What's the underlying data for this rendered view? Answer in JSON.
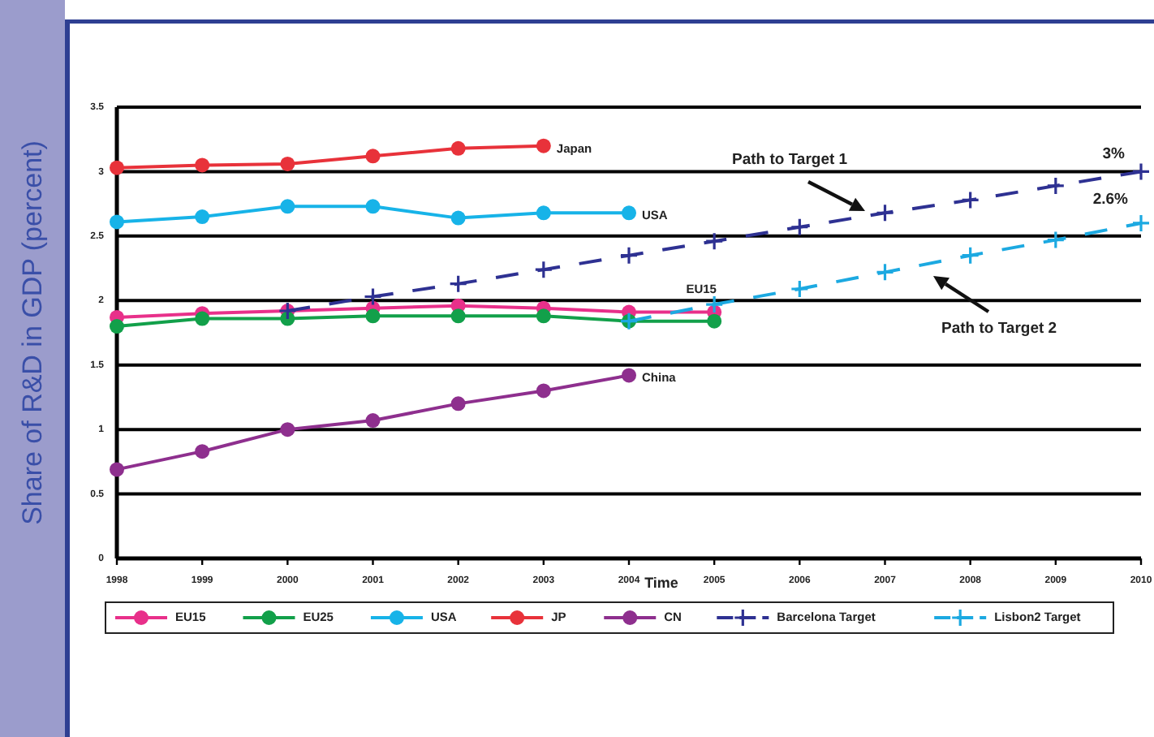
{
  "chart_data": {
    "type": "line",
    "xlabel": "Time",
    "ylabel": "Share of R&D in GDP (percent)",
    "x": [
      1998,
      1999,
      2000,
      2001,
      2002,
      2003,
      2004,
      2005,
      2006,
      2007,
      2008,
      2009,
      2010
    ],
    "xlim": [
      1998,
      2010
    ],
    "xticks": [
      1998,
      1999,
      2000,
      2001,
      2002,
      2003,
      2004,
      2005,
      2006,
      2007,
      2008,
      2009,
      2010
    ],
    "ylim": [
      0,
      3.5
    ],
    "yticks": [
      0,
      0.5,
      1,
      1.5,
      2,
      2.5,
      3,
      3.5
    ],
    "grid": "y",
    "legend": "bottom",
    "series": [
      {
        "name": "EU15",
        "color": "#e8308a",
        "marker": "circle",
        "line_style": "solid",
        "values": [
          1.87,
          1.9,
          1.92,
          1.94,
          1.96,
          1.94,
          1.91,
          1.91,
          null,
          null,
          null,
          null,
          null
        ]
      },
      {
        "name": "EU25",
        "color": "#12a04a",
        "marker": "circle",
        "line_style": "solid",
        "values": [
          1.8,
          1.86,
          1.86,
          1.88,
          1.88,
          1.88,
          1.84,
          1.84,
          null,
          null,
          null,
          null,
          null
        ]
      },
      {
        "name": "USA",
        "color": "#17b3e8",
        "marker": "circle",
        "line_style": "solid",
        "values": [
          2.61,
          2.65,
          2.73,
          2.73,
          2.64,
          2.68,
          2.68,
          null,
          null,
          null,
          null,
          null,
          null
        ]
      },
      {
        "name": "JP",
        "color": "#e8323a",
        "marker": "circle",
        "line_style": "solid",
        "values": [
          3.03,
          3.05,
          3.06,
          3.12,
          3.18,
          3.2,
          null,
          null,
          null,
          null,
          null,
          null,
          null
        ]
      },
      {
        "name": "CN",
        "color": "#8e2f8e",
        "marker": "circle",
        "line_style": "solid",
        "values": [
          0.69,
          0.83,
          1.0,
          1.07,
          1.2,
          1.3,
          1.42,
          null,
          null,
          null,
          null,
          null,
          null
        ]
      },
      {
        "name": "Barcelona Target",
        "color": "#2e3192",
        "marker": "cross",
        "line_style": "dashed",
        "values": [
          null,
          null,
          1.92,
          2.03,
          2.13,
          2.24,
          2.35,
          2.46,
          2.57,
          2.68,
          2.78,
          2.89,
          3.0
        ]
      },
      {
        "name": "Lisbon2 Target",
        "color": "#1ca9e1",
        "marker": "cross",
        "line_style": "dashed",
        "values": [
          null,
          null,
          null,
          null,
          null,
          null,
          1.84,
          1.97,
          2.09,
          2.22,
          2.35,
          2.47,
          2.6
        ]
      }
    ],
    "annotations": [
      {
        "text": "Japan",
        "x": 2003,
        "y": 3.2
      },
      {
        "text": "USA",
        "x": 2004,
        "y": 2.68
      },
      {
        "text": "EU15",
        "x": 2005,
        "y": 1.91
      },
      {
        "text": "China",
        "x": 2004,
        "y": 1.42
      },
      "Path to Target 1",
      "Path to Target 2",
      {
        "text": "3%",
        "x": 2010,
        "y": 3.0
      },
      {
        "text": "2.6%",
        "x": 2010,
        "y": 2.6
      }
    ]
  }
}
